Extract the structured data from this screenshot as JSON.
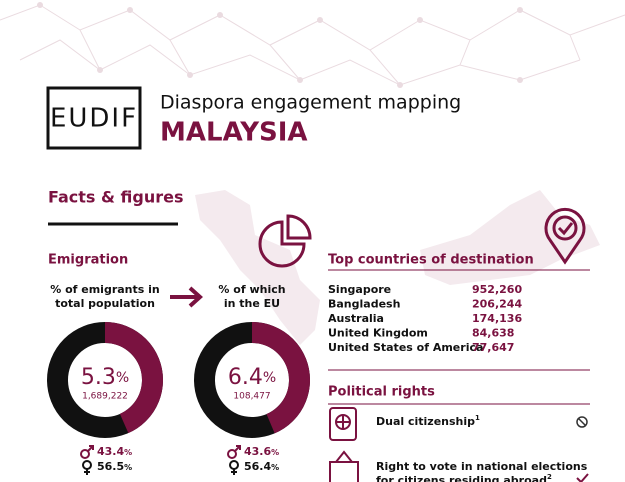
{
  "logo": "EUDIF",
  "header": {
    "title": "Diaspora engagement mapping",
    "country": "MALAYSIA"
  },
  "section": "Facts & figures",
  "emigration": {
    "title": "Emigration",
    "indicators": [
      {
        "caption": [
          "% of emigrants in",
          "total population"
        ],
        "value": 5.3,
        "unit": "%",
        "count": "1,689,222",
        "male": 43.4,
        "female": 56.5
      },
      {
        "caption": [
          "% of which",
          "in the EU"
        ],
        "value": 6.4,
        "unit": "%",
        "count": "108,477",
        "male": 43.6,
        "female": 56.4
      }
    ]
  },
  "destinations": {
    "title": "Top countries of destination",
    "rows": [
      [
        "Singapore",
        "952,260"
      ],
      [
        "Bangladesh",
        "206,244"
      ],
      [
        "Australia",
        "174,136"
      ],
      [
        "United Kingdom",
        "84,638"
      ],
      [
        "United States of America",
        "77,647"
      ]
    ]
  },
  "political_rights": {
    "title": "Political rights",
    "items": [
      {
        "label": [
          "Dual citizenship"
        ],
        "note": "1"
      },
      {
        "label": [
          "Right to vote in national elections",
          "for citizens residing abroad"
        ],
        "note": "2"
      }
    ]
  }
}
